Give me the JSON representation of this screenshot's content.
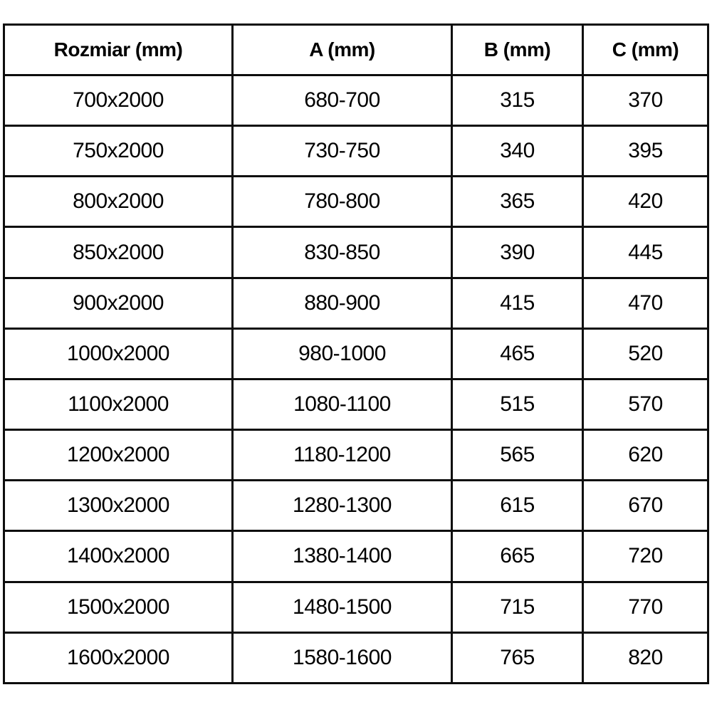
{
  "table": {
    "headers": [
      "Rozmiar (mm)",
      "A (mm)",
      "B (mm)",
      "C (mm)"
    ],
    "rows": [
      [
        "700x2000",
        "680-700",
        "315",
        "370"
      ],
      [
        "750x2000",
        "730-750",
        "340",
        "395"
      ],
      [
        "800x2000",
        "780-800",
        "365",
        "420"
      ],
      [
        "850x2000",
        "830-850",
        "390",
        "445"
      ],
      [
        "900x2000",
        "880-900",
        "415",
        "470"
      ],
      [
        "1000x2000",
        "980-1000",
        "465",
        "520"
      ],
      [
        "1100x2000",
        "1080-1100",
        "515",
        "570"
      ],
      [
        "1200x2000",
        "1180-1200",
        "565",
        "620"
      ],
      [
        "1300x2000",
        "1280-1300",
        "615",
        "670"
      ],
      [
        "1400x2000",
        "1380-1400",
        "665",
        "720"
      ],
      [
        "1500x2000",
        "1480-1500",
        "715",
        "770"
      ],
      [
        "1600x2000",
        "1580-1600",
        "765",
        "820"
      ]
    ]
  },
  "colors": {
    "border": "#0d0d0d",
    "text": "#000000",
    "background": "#ffffff"
  }
}
